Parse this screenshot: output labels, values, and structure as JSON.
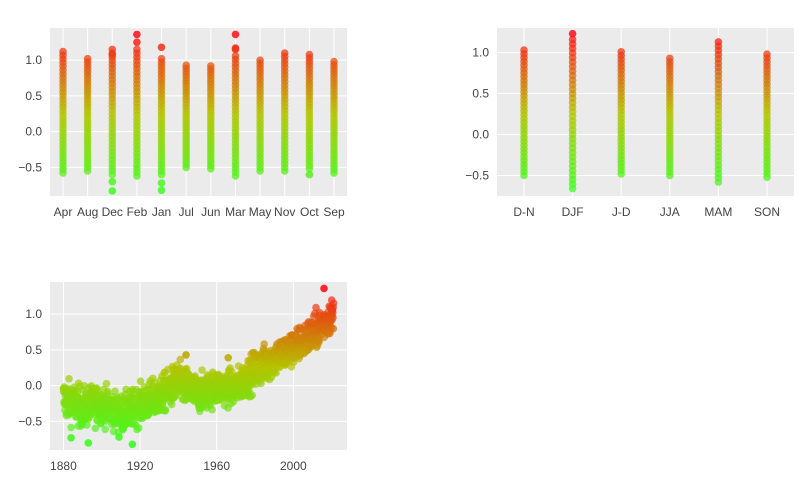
{
  "chart_data": [
    {
      "type": "scatter",
      "title": "",
      "xlabel": "",
      "ylabel": "",
      "grid": true,
      "categories": [
        "Apr",
        "Aug",
        "Dec",
        "Feb",
        "Jan",
        "Jul",
        "Jun",
        "Mar",
        "May",
        "Nov",
        "Oct",
        "Sep"
      ],
      "ylim": [
        -0.9,
        1.45
      ],
      "yticks": [
        -0.5,
        0,
        0.5,
        1
      ],
      "ytick_labels": [
        "−0.5",
        "0.0",
        "0.5",
        "1.0"
      ],
      "marker_colorscale": [
        "#39ff23",
        "#b4c400",
        "#ff0f1b"
      ],
      "marker_color_range": [
        -0.85,
        1.37
      ],
      "series": [
        {
          "x": "Apr",
          "min": -0.58,
          "max": 1.12,
          "outliers": []
        },
        {
          "x": "Aug",
          "min": -0.55,
          "max": 1.02,
          "outliers": []
        },
        {
          "x": "Dec",
          "min": -0.6,
          "max": 1.15,
          "outliers": [
            -0.7,
            -0.83,
            1.08
          ]
        },
        {
          "x": "Feb",
          "min": -0.62,
          "max": 1.15,
          "outliers": [
            1.36,
            1.25
          ]
        },
        {
          "x": "Jan",
          "min": -0.6,
          "max": 1.02,
          "outliers": [
            -0.72,
            -0.82,
            1.18
          ]
        },
        {
          "x": "Jul",
          "min": -0.5,
          "max": 0.93,
          "outliers": []
        },
        {
          "x": "Jun",
          "min": -0.52,
          "max": 0.92,
          "outliers": []
        },
        {
          "x": "Mar",
          "min": -0.62,
          "max": 1.06,
          "outliers": [
            1.36,
            1.17,
            1.15
          ]
        },
        {
          "x": "May",
          "min": -0.55,
          "max": 1.0,
          "outliers": []
        },
        {
          "x": "Nov",
          "min": -0.55,
          "max": 1.1,
          "outliers": []
        },
        {
          "x": "Oct",
          "min": -0.52,
          "max": 1.08,
          "outliers": [
            -0.6
          ]
        },
        {
          "x": "Sep",
          "min": -0.58,
          "max": 0.98,
          "outliers": []
        }
      ]
    },
    {
      "type": "scatter",
      "title": "",
      "xlabel": "",
      "ylabel": "",
      "grid": true,
      "categories": [
        "D-N",
        "DJF",
        "J-D",
        "JJA",
        "MAM",
        "SON"
      ],
      "ylim": [
        -0.75,
        1.3
      ],
      "yticks": [
        -0.5,
        0,
        0.5,
        1
      ],
      "ytick_labels": [
        "−0.5",
        "0.0",
        "0.5",
        "1.0"
      ],
      "marker_colorscale": [
        "#39ff23",
        "#b4c400",
        "#ff0f1b"
      ],
      "marker_color_range": [
        -0.7,
        1.23
      ],
      "series": [
        {
          "x": "D-N",
          "min": -0.5,
          "max": 1.03,
          "outliers": []
        },
        {
          "x": "DJF",
          "min": -0.66,
          "max": 1.16,
          "outliers": [
            1.23
          ]
        },
        {
          "x": "J-D",
          "min": -0.48,
          "max": 1.01,
          "outliers": []
        },
        {
          "x": "JJA",
          "min": -0.5,
          "max": 0.93,
          "outliers": []
        },
        {
          "x": "MAM",
          "min": -0.58,
          "max": 1.13,
          "outliers": []
        },
        {
          "x": "SON",
          "min": -0.52,
          "max": 0.98,
          "outliers": []
        }
      ]
    },
    {
      "type": "scatter",
      "title": "",
      "xlabel": "",
      "ylabel": "",
      "grid": true,
      "xlim": [
        1873,
        2028
      ],
      "xticks": [
        1880,
        1920,
        1960,
        2000
      ],
      "ylim": [
        -0.9,
        1.45
      ],
      "yticks": [
        -0.5,
        0,
        0.5,
        1
      ],
      "ytick_labels": [
        "−0.5",
        "0.0",
        "0.5",
        "1.0"
      ],
      "marker_colorscale": [
        "#39ff23",
        "#b4c400",
        "#ff0f1b"
      ],
      "marker_color_range": [
        -0.83,
        1.36
      ],
      "trend": [
        {
          "year": 1880,
          "mean": -0.18,
          "spread": 0.18
        },
        {
          "year": 1890,
          "mean": -0.3,
          "spread": 0.18
        },
        {
          "year": 1900,
          "mean": -0.25,
          "spread": 0.17
        },
        {
          "year": 1910,
          "mean": -0.4,
          "spread": 0.17
        },
        {
          "year": 1920,
          "mean": -0.27,
          "spread": 0.17
        },
        {
          "year": 1930,
          "mean": -0.15,
          "spread": 0.17
        },
        {
          "year": 1940,
          "mean": 0.05,
          "spread": 0.18
        },
        {
          "year": 1950,
          "mean": -0.12,
          "spread": 0.17
        },
        {
          "year": 1960,
          "mean": -0.03,
          "spread": 0.16
        },
        {
          "year": 1970,
          "mean": -0.03,
          "spread": 0.16
        },
        {
          "year": 1980,
          "mean": 0.22,
          "spread": 0.17
        },
        {
          "year": 1990,
          "mean": 0.38,
          "spread": 0.17
        },
        {
          "year": 2000,
          "mean": 0.52,
          "spread": 0.16
        },
        {
          "year": 2010,
          "mean": 0.72,
          "spread": 0.17
        },
        {
          "year": 2020,
          "mean": 0.98,
          "spread": 0.15
        }
      ],
      "outliers": [
        {
          "year": 1884,
          "value": -0.73
        },
        {
          "year": 1893,
          "value": -0.8
        },
        {
          "year": 1909,
          "value": -0.72
        },
        {
          "year": 1916,
          "value": -0.82
        },
        {
          "year": 1944,
          "value": 0.43
        },
        {
          "year": 1966,
          "value": 0.39
        },
        {
          "year": 2016,
          "value": 1.36
        }
      ]
    }
  ]
}
